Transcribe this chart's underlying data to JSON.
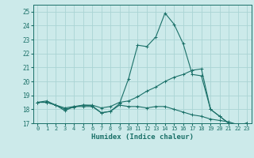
{
  "xlabel": "Humidex (Indice chaleur)",
  "background_color": "#cceaea",
  "grid_color": "#aad4d4",
  "line_color": "#1a7068",
  "xlim": [
    -0.5,
    23.5
  ],
  "ylim": [
    17,
    25.5
  ],
  "yticks": [
    17,
    18,
    19,
    20,
    21,
    22,
    23,
    24,
    25
  ],
  "xticks": [
    0,
    1,
    2,
    3,
    4,
    5,
    6,
    7,
    8,
    9,
    10,
    11,
    12,
    13,
    14,
    15,
    16,
    17,
    18,
    19,
    20,
    21,
    22,
    23
  ],
  "series": [
    [
      18.5,
      18.6,
      18.3,
      17.9,
      18.2,
      18.2,
      18.2,
      17.75,
      17.85,
      18.4,
      20.2,
      22.6,
      22.5,
      23.2,
      24.9,
      24.1,
      22.7,
      20.5,
      20.4,
      18.0,
      17.5,
      17.0,
      16.85,
      17.0
    ],
    [
      18.5,
      18.5,
      18.3,
      18.1,
      18.2,
      18.3,
      18.3,
      18.1,
      18.2,
      18.5,
      18.6,
      18.9,
      19.3,
      19.6,
      20.0,
      20.3,
      20.5,
      20.8,
      20.9,
      18.0,
      17.5,
      17.0,
      16.85,
      17.0
    ],
    [
      18.5,
      18.5,
      18.3,
      18.0,
      18.15,
      18.3,
      18.25,
      17.75,
      17.85,
      18.3,
      18.2,
      18.2,
      18.1,
      18.2,
      18.2,
      18.0,
      17.8,
      17.6,
      17.5,
      17.3,
      17.2,
      17.1,
      16.9,
      17.0
    ]
  ]
}
